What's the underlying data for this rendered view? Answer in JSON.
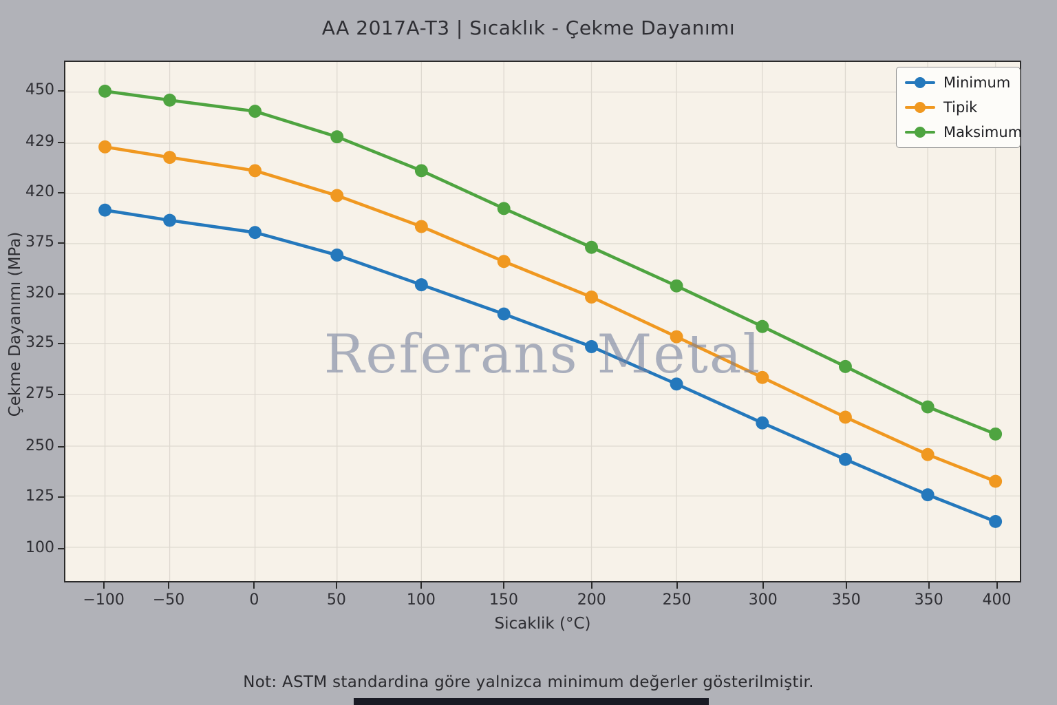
{
  "title": "AA 2017A-T3 | Sıcaklık - Çekme Dayanımı",
  "note": "Not: ASTM standardina göre yalnizca minimum değerler gösterilmiştir.",
  "watermark": "Referans Metal",
  "colors": {
    "figure_background": "#b1b2b8",
    "plot_background": "#f7f2e9",
    "grid": "#ded9d0",
    "spine": "#2b2b2b",
    "minimum_series": "#2478bc",
    "tipik_series": "#f09820",
    "maksimum_series": "#4ea440",
    "watermark": "rgba(116,128,158,0.6)",
    "bottom_bar": "#191a24"
  },
  "chart_data": {
    "type": "line",
    "title": "AA 2017A-T3 | Sıcaklık - Çekme Dayanımı",
    "xlabel": "Sicaklik (°C)",
    "ylabel": "Çekme Dayanımı (MPa)",
    "grid": true,
    "legend_position": "upper right",
    "marker": "circle",
    "xticklabels": [
      "−100",
      "−50",
      "0",
      "50",
      "100",
      "150",
      "200",
      "250",
      "300",
      "350",
      "350",
      "400"
    ],
    "yticklabels": [
      "450",
      "429",
      "420",
      "375",
      "320",
      "325",
      "275",
      "250",
      "125",
      "100"
    ],
    "x_frac_pct": [
      4.15,
      10.93,
      19.87,
      28.46,
      37.3,
      45.94,
      55.12,
      64.03,
      73.02,
      81.72,
      90.35,
      97.45
    ],
    "ytick_frac_pct": [
      5.8,
      15.66,
      25.33,
      35.0,
      44.68,
      54.22,
      64.02,
      74.01,
      83.6,
      93.49
    ],
    "series": [
      {
        "name": "Minimum",
        "color": "#2478bc",
        "y_frac_pct": [
          28.54,
          30.51,
          32.85,
          37.2,
          42.92,
          48.55,
          54.84,
          62.04,
          69.53,
          76.56,
          83.38,
          88.52
        ],
        "values_mpa_readout": [
          405,
          396,
          385,
          363,
          330,
          322,
          322,
          285,
          261,
          217,
          128,
          113
        ]
      },
      {
        "name": "Tipik",
        "color": "#f09820",
        "y_frac_pct": [
          16.36,
          18.38,
          20.94,
          25.73,
          31.7,
          38.43,
          45.29,
          52.94,
          60.78,
          68.43,
          75.63,
          80.78
        ],
        "values_mpa_readout": [
          428,
          427,
          424,
          418,
          390,
          356,
          320,
          324,
          292,
          264,
          229,
          162
        ]
      },
      {
        "name": "Maksimum",
        "color": "#4ea440",
        "y_frac_pct": [
          5.63,
          7.35,
          9.5,
          14.42,
          20.94,
          28.23,
          35.71,
          43.14,
          50.96,
          58.67,
          66.45,
          71.67
        ],
        "values_mpa_readout": [
          450,
          447,
          442,
          432,
          424,
          407,
          371,
          329,
          323,
          302,
          269,
          256
        ]
      }
    ]
  }
}
